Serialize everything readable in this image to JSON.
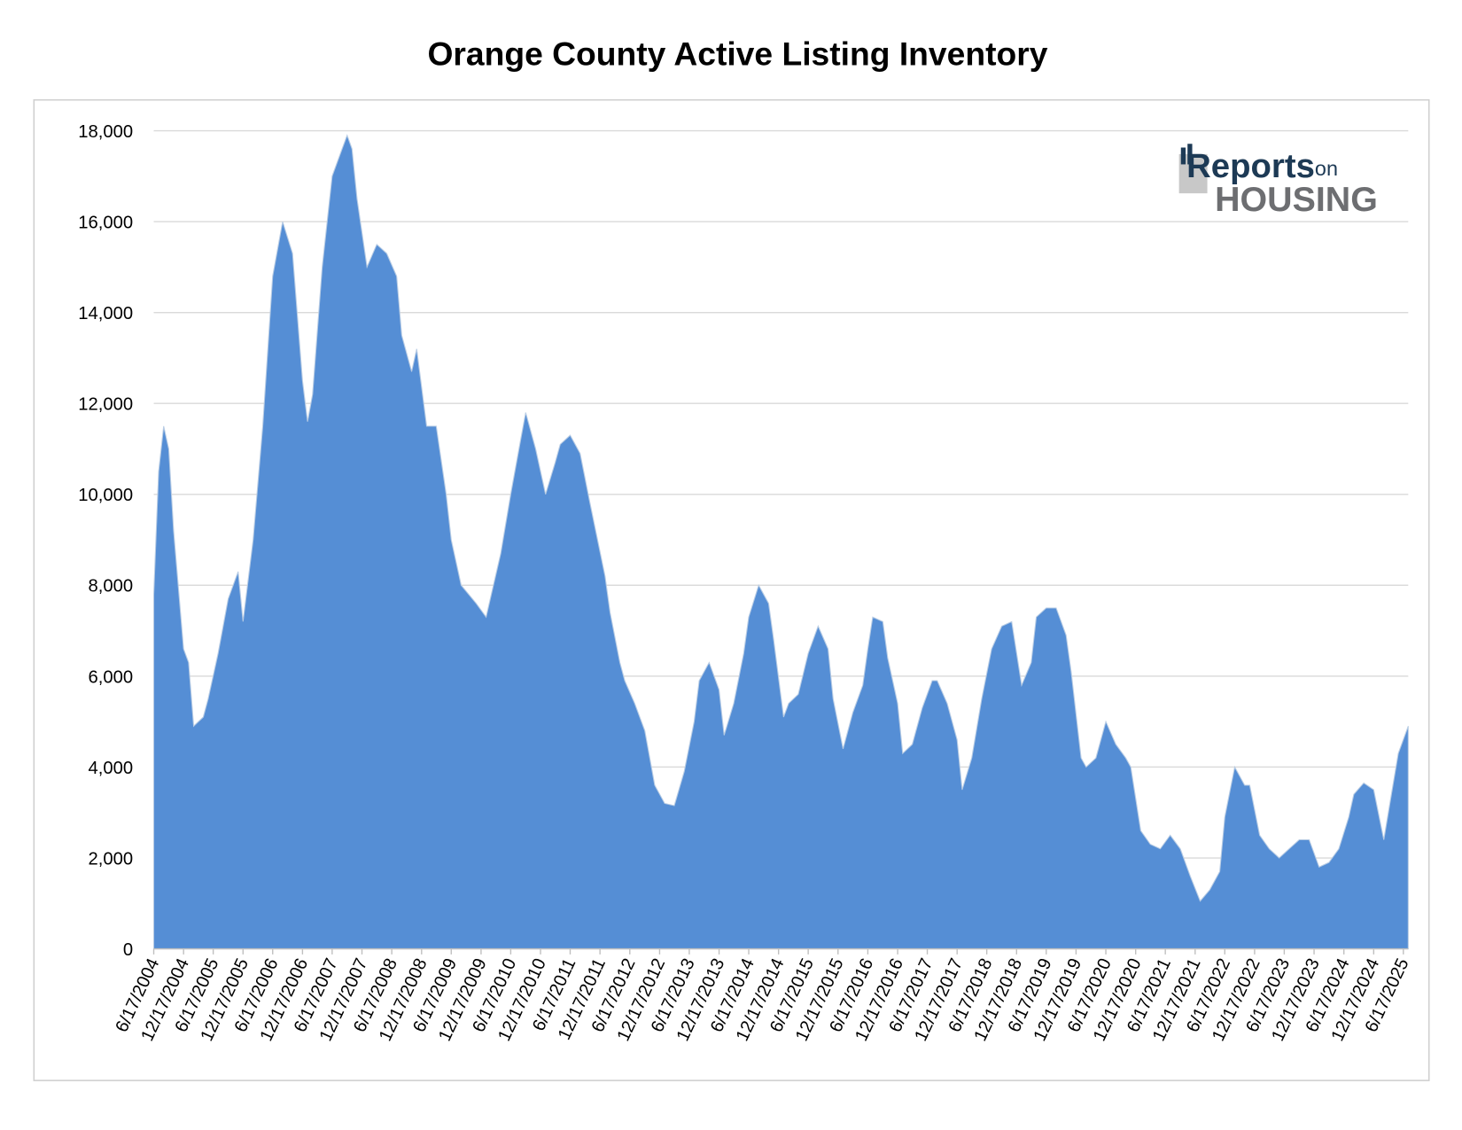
{
  "chart_data": {
    "type": "area",
    "title": "Orange County Active Listing Inventory",
    "logo": {
      "line1": "Reports",
      "line1b": "on",
      "line2": "HOUSING"
    },
    "color": "#558ed5",
    "grid": true,
    "ylim": [
      0,
      18000
    ],
    "yticks": [
      0,
      {
        "value": 2000,
        "label": "2,000"
      },
      {
        "value": 4000,
        "label": "4,000"
      },
      {
        "value": 6000,
        "label": "6,000"
      },
      {
        "value": 8000,
        "label": "8,000"
      },
      {
        "value": 10000,
        "label": "10,000"
      },
      {
        "value": 12000,
        "label": "12,000"
      },
      {
        "value": 14000,
        "label": "14,000"
      },
      {
        "value": 16000,
        "label": "16,000"
      },
      {
        "value": 18000,
        "label": "18,000"
      }
    ],
    "xlim": [
      "6/17/2004",
      "7/17/2025"
    ],
    "xticks": [
      "6/17/2004",
      "12/17/2004",
      "6/17/2005",
      "12/17/2005",
      "6/17/2006",
      "12/17/2006",
      "6/17/2007",
      "12/17/2007",
      "6/17/2008",
      "12/17/2008",
      "6/17/2009",
      "12/17/2009",
      "6/17/2010",
      "12/17/2010",
      "6/17/2011",
      "12/17/2011",
      "6/17/2012",
      "12/17/2012",
      "6/17/2013",
      "12/17/2013",
      "6/17/2014",
      "12/17/2014",
      "6/17/2015",
      "12/17/2015",
      "6/17/2016",
      "12/17/2016",
      "6/17/2017",
      "12/17/2017",
      "6/17/2018",
      "12/17/2018",
      "6/17/2019",
      "12/17/2019",
      "6/17/2020",
      "12/17/2020",
      "6/17/2021",
      "12/17/2021",
      "6/17/2022",
      "12/17/2022",
      "6/17/2023",
      "12/17/2023",
      "6/17/2024",
      "12/17/2024",
      "6/17/2025"
    ],
    "x": [
      "6/17/2004",
      "7/17/2004",
      "8/17/2004",
      "9/17/2004",
      "10/17/2004",
      "12/17/2004",
      "1/17/2005",
      "2/17/2005",
      "4/17/2005",
      "5/17/2005",
      "7/17/2005",
      "9/17/2005",
      "11/17/2005",
      "12/17/2005",
      "2/17/2006",
      "4/17/2006",
      "6/17/2006",
      "8/17/2006",
      "10/17/2006",
      "12/17/2006",
      "1/17/2007",
      "2/17/2007",
      "4/17/2007",
      "6/17/2007",
      "8/17/2007",
      "9/17/2007",
      "10/17/2007",
      "11/17/2007",
      "1/17/2008",
      "3/17/2008",
      "5/17/2008",
      "7/17/2008",
      "8/17/2008",
      "10/17/2008",
      "11/17/2008",
      "1/17/2009",
      "3/17/2009",
      "5/17/2009",
      "6/17/2009",
      "8/17/2009",
      "11/17/2009",
      "1/17/2010",
      "4/17/2010",
      "6/17/2010",
      "8/17/2010",
      "9/17/2010",
      "11/17/2010",
      "1/17/2011",
      "3/17/2011",
      "4/17/2011",
      "6/17/2011",
      "8/17/2011",
      "10/17/2011",
      "1/17/2012",
      "2/17/2012",
      "4/17/2012",
      "5/17/2012",
      "7/17/2012",
      "9/17/2012",
      "11/17/2012",
      "1/17/2013",
      "3/17/2013",
      "5/17/2013",
      "7/17/2013",
      "8/17/2013",
      "10/17/2013",
      "12/17/2013",
      "1/17/2014",
      "3/17/2014",
      "5/17/2014",
      "6/17/2014",
      "8/17/2014",
      "10/17/2014",
      "11/17/2014",
      "1/17/2015",
      "2/17/2015",
      "4/17/2015",
      "6/17/2015",
      "8/17/2015",
      "10/17/2015",
      "11/17/2015",
      "1/17/2016",
      "3/17/2016",
      "5/17/2016",
      "6/17/2016",
      "7/17/2016",
      "9/17/2016",
      "10/17/2016",
      "12/17/2016",
      "1/17/2017",
      "3/17/2017",
      "5/17/2017",
      "7/17/2017",
      "8/17/2017",
      "10/17/2017",
      "12/17/2017",
      "1/17/2018",
      "3/17/2018",
      "5/17/2018",
      "7/17/2018",
      "9/17/2018",
      "11/17/2018",
      "1/17/2019",
      "3/17/2019",
      "4/17/2019",
      "6/17/2019",
      "8/17/2019",
      "10/17/2019",
      "11/17/2019",
      "1/17/2020",
      "2/17/2020",
      "4/17/2020",
      "6/17/2020",
      "8/17/2020",
      "10/17/2020",
      "11/17/2020",
      "1/17/2021",
      "3/17/2021",
      "5/17/2021",
      "7/17/2021",
      "9/17/2021",
      "11/17/2021",
      "1/17/2022",
      "3/17/2022",
      "5/17/2022",
      "6/17/2022",
      "8/17/2022",
      "10/17/2022",
      "11/17/2022",
      "1/17/2023",
      "3/17/2023",
      "5/17/2023",
      "7/17/2023",
      "9/17/2023",
      "11/17/2023",
      "1/17/2024",
      "3/17/2024",
      "5/17/2024",
      "7/17/2024",
      "8/17/2024",
      "10/17/2024",
      "12/17/2024",
      "2/17/2025",
      "3/17/2025",
      "5/17/2025",
      "7/17/2025"
    ],
    "values": [
      7800,
      10500,
      11500,
      11000,
      9200,
      6600,
      6300,
      4900,
      5100,
      5500,
      6500,
      7700,
      8300,
      7200,
      9000,
      11500,
      14800,
      16000,
      15300,
      12500,
      11600,
      12200,
      15000,
      17000,
      17600,
      17900,
      17600,
      16500,
      15000,
      15500,
      15300,
      14800,
      13500,
      12700,
      13200,
      11500,
      11500,
      10000,
      9000,
      8000,
      7600,
      7300,
      8700,
      10000,
      11200,
      11800,
      11000,
      10000,
      10700,
      11100,
      11300,
      10900,
      9800,
      8200,
      7400,
      6300,
      5900,
      5400,
      4800,
      3600,
      3200,
      3150,
      3900,
      5000,
      5900,
      6300,
      5700,
      4700,
      5400,
      6500,
      7300,
      8000,
      7600,
      6800,
      5100,
      5400,
      5600,
      6500,
      7100,
      6600,
      5500,
      4400,
      5200,
      5800,
      6600,
      7300,
      7200,
      6400,
      5400,
      4300,
      4500,
      5300,
      5900,
      5900,
      5400,
      4600,
      3500,
      4200,
      5500,
      6600,
      7100,
      7200,
      5800,
      6300,
      7300,
      7500,
      7500,
      6900,
      6100,
      4200,
      4000,
      4200,
      5000,
      4500,
      4200,
      4000,
      2600,
      2300,
      2200,
      2500,
      2200,
      1600,
      1050,
      1300,
      1700,
      2900,
      4000,
      3600,
      3600,
      2500,
      2200,
      2000,
      2200,
      2400,
      2400,
      1800,
      1900,
      2200,
      2900,
      3400,
      3650,
      3500,
      2400,
      3000,
      4300,
      4900
    ]
  }
}
